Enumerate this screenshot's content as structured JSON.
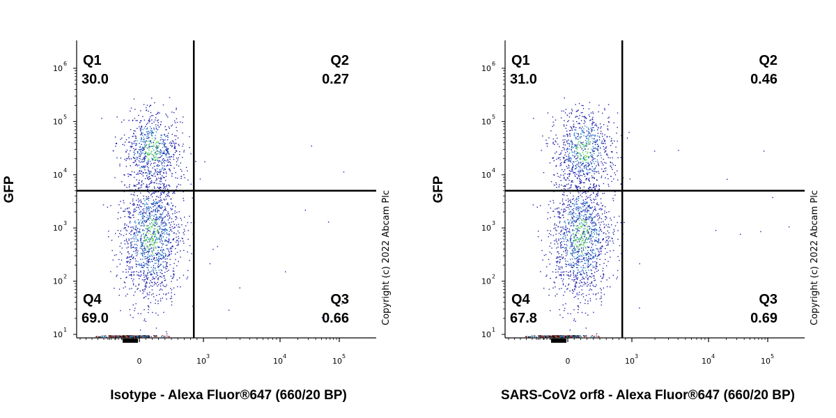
{
  "chart_data": [
    {
      "type": "scatter",
      "xlabel": "Isotype - Alexa Fluor®647 (660/20 BP)",
      "ylabel": "GFP",
      "x_scale": "biexponential",
      "y_scale": "log",
      "ylim": [
        10,
        3000000
      ],
      "x_ticks": [
        {
          "base": "0",
          "exp": ""
        },
        {
          "base": "10",
          "exp": "3"
        },
        {
          "base": "10",
          "exp": "4"
        },
        {
          "base": "10",
          "exp": "5"
        }
      ],
      "y_ticks": [
        {
          "base": "10",
          "exp": "1"
        },
        {
          "base": "10",
          "exp": "2"
        },
        {
          "base": "10",
          "exp": "3"
        },
        {
          "base": "10",
          "exp": "4"
        },
        {
          "base": "10",
          "exp": "5"
        },
        {
          "base": "10",
          "exp": "6"
        }
      ],
      "gate": {
        "x": 850,
        "y": 5000
      },
      "quadrants": [
        {
          "name": "Q1",
          "value": "30.0"
        },
        {
          "name": "Q2",
          "value": "0.27"
        },
        {
          "name": "Q3",
          "value": "0.66"
        },
        {
          "name": "Q4",
          "value": "69.0"
        }
      ],
      "populations": [
        {
          "x": 200,
          "y": 30000,
          "n": 700
        },
        {
          "x": 180,
          "y": 700,
          "n": 1400
        }
      ],
      "copyright": "Copyright (c) 2022 Abcam Plc"
    },
    {
      "type": "scatter",
      "xlabel": "SARS-CoV2 orf8 - Alexa Fluor®647 (660/20 BP)",
      "ylabel": "GFP",
      "x_scale": "biexponential",
      "y_scale": "log",
      "ylim": [
        10,
        3000000
      ],
      "x_ticks": [
        {
          "base": "0",
          "exp": ""
        },
        {
          "base": "10",
          "exp": "3"
        },
        {
          "base": "10",
          "exp": "4"
        },
        {
          "base": "10",
          "exp": "5"
        }
      ],
      "y_ticks": [
        {
          "base": "10",
          "exp": "1"
        },
        {
          "base": "10",
          "exp": "2"
        },
        {
          "base": "10",
          "exp": "3"
        },
        {
          "base": "10",
          "exp": "4"
        },
        {
          "base": "10",
          "exp": "5"
        },
        {
          "base": "10",
          "exp": "6"
        }
      ],
      "gate": {
        "x": 850,
        "y": 5000
      },
      "quadrants": [
        {
          "name": "Q1",
          "value": "31.0"
        },
        {
          "name": "Q2",
          "value": "0.46"
        },
        {
          "name": "Q3",
          "value": "0.69"
        },
        {
          "name": "Q4",
          "value": "67.8"
        }
      ],
      "populations": [
        {
          "x": 250,
          "y": 30000,
          "n": 700
        },
        {
          "x": 200,
          "y": 700,
          "n": 1350
        }
      ],
      "copyright": "Copyright (c) 2022 Abcam Plc"
    }
  ],
  "colors": {
    "density_low": "#1a1aa8",
    "density_mid": "#1d7dc9",
    "density_high": "#4fd24f",
    "axis_clip": "#b03020"
  }
}
